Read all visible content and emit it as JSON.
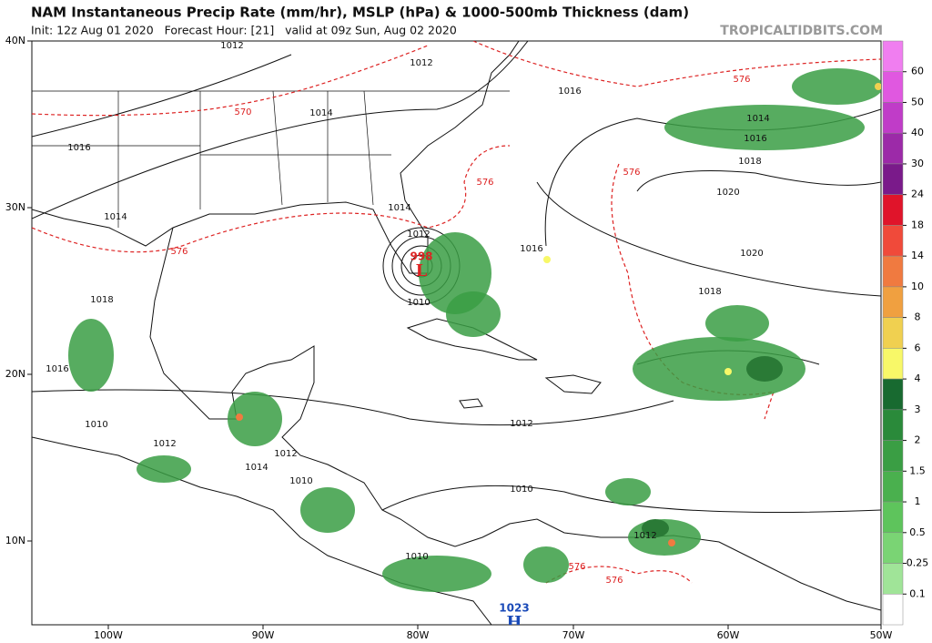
{
  "header": {
    "title": "NAM Instantaneous Precip Rate (mm/hr), MSLP (hPa) & 1000-500mb Thickness (dam)",
    "subtitle": "Init: 12z Aug 01 2020   Forecast Hour: [21]   valid at 09z Sun, Aug 02 2020",
    "brand": "TROPICALTIDBITS.COM"
  },
  "axes": {
    "lat_labels": [
      "40N",
      "30N",
      "20N",
      "10N"
    ],
    "lon_labels": [
      "100W",
      "90W",
      "80W",
      "70W",
      "60W",
      "50W"
    ]
  },
  "colorbar": {
    "labels": [
      60,
      50,
      40,
      30,
      24,
      18,
      14,
      10,
      8,
      6,
      4,
      3,
      2,
      1.5,
      1,
      0.5,
      0.25,
      0.1
    ],
    "colors": [
      "#f07ef0",
      "#e058e0",
      "#c03cc8",
      "#9c2aa8",
      "#7a1a8a",
      "#e0142a",
      "#f04a3a",
      "#f07a40",
      "#f0a040",
      "#f0d050",
      "#f8f868",
      "#186a30",
      "#2a8a3a",
      "#3a9e44",
      "#4ab04e",
      "#5ec45c",
      "#7ad474",
      "#a0e498",
      "#ffffff"
    ]
  },
  "contour_labels": [
    "1012",
    "1012",
    "1014",
    "1016",
    "1014",
    "1014",
    "1012",
    "1016",
    "1010",
    "1018",
    "1016",
    "1012",
    "1010",
    "1012",
    "1012",
    "1014",
    "1010",
    "1010",
    "1010",
    "1012",
    "1016",
    "1014",
    "1016",
    "1018",
    "1020",
    "1020",
    "1018"
  ],
  "thickness_labels": [
    "570",
    "576",
    "576",
    "576",
    "576",
    "576",
    "576"
  ],
  "pressure_centers": [
    {
      "value": "998",
      "symbol": "L"
    },
    {
      "value": "1023",
      "symbol": "H"
    }
  ]
}
